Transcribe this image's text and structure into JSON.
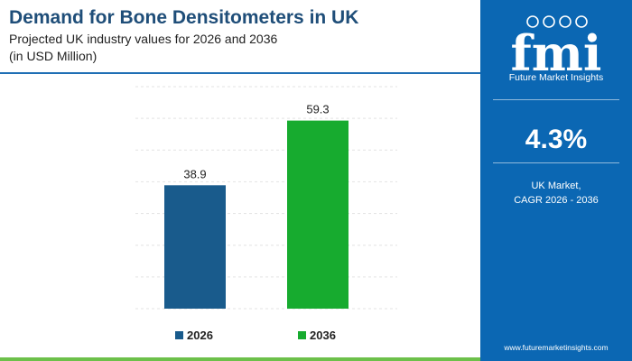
{
  "header": {
    "title": "Demand for Bone Densitometers in UK",
    "subtitle": "Projected UK industry values for 2026 and 2036",
    "units": "(in USD Million)"
  },
  "chart_data": {
    "type": "bar",
    "categories": [
      "2026",
      "2036"
    ],
    "values": [
      38.9,
      59.3
    ],
    "value_labels": [
      "38.9",
      "59.3"
    ],
    "colors": [
      "#195b8c",
      "#17ab2f"
    ],
    "legend": [
      "2026",
      "2036"
    ],
    "legend_position": "bottom",
    "grid": true,
    "ylim": [
      0,
      70
    ],
    "title": "Demand for Bone Densitometers in UK",
    "xlabel": "",
    "ylabel": ""
  },
  "sidebar": {
    "logo_text": "fmi",
    "brand_name": "Future Market Insights",
    "cagr_value": "4.3%",
    "cagr_label_line1": "UK Market,",
    "cagr_label_line2": "CAGR 2026 - 2036",
    "website": "www.futuremarketinsights.com",
    "background_color": "#0b67b3"
  }
}
